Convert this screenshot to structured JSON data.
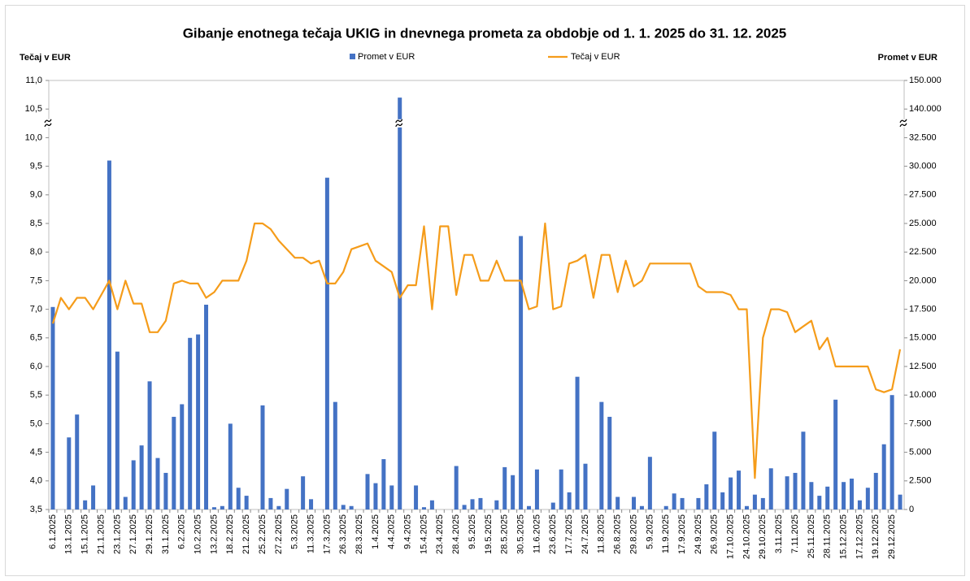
{
  "chart_data": {
    "type": "combo",
    "title": "Gibanje enotnega tečaja UKIG in dnevnega prometa za obdobje od 1. 1. 2025 do 31. 12. 2025",
    "y_label": "Tečaj v EUR",
    "y2_label": "Promet v EUR",
    "categories": [
      "6.1.2025",
      null,
      "13.1.2025",
      null,
      "15.1.2025",
      null,
      "21.1.2025",
      null,
      "23.1.2025",
      null,
      "27.1.2025",
      null,
      "29.1.2025",
      null,
      "31.1.2025",
      null,
      "6.2.2025",
      null,
      "10.2.2025",
      null,
      "13.2.2025",
      null,
      "18.2.2025",
      null,
      "21.2.2025",
      null,
      "25.2.2025",
      null,
      "27.2.2025",
      null,
      "5.3.2025",
      null,
      "11.3.2025",
      null,
      "17.3.2025",
      null,
      "26.3.2025",
      null,
      "28.3.2025",
      null,
      "1.4.2025",
      null,
      "4.4.2025",
      null,
      "9.4.2025",
      null,
      "15.4.2025",
      null,
      "23.4.2025",
      null,
      "28.4.2025",
      null,
      "9.5.2025",
      null,
      "19.5.2025",
      null,
      "28.5.2025",
      null,
      "30.5.2025",
      null,
      "11.6.2025",
      null,
      "23.6.2025",
      null,
      "17.7.2025",
      null,
      "24.7.2025",
      null,
      "11.8.2025",
      null,
      "26.8.2025",
      null,
      "29.8.2025",
      null,
      "5.9.2025",
      null,
      "11.9.2025",
      null,
      "17.9.2025",
      null,
      "24.9.2025",
      null,
      "26.9.2025",
      null,
      "17.10.2025",
      null,
      "24.10.2025",
      null,
      "29.10.2025",
      null,
      "3.11.2025",
      null,
      "7.11.2025",
      null,
      "25.11.2025",
      null,
      "28.11.2025",
      null,
      "15.12.2025",
      null,
      "17.12.2025",
      null,
      "19.12.2025",
      null,
      "29.12.2025",
      null
    ],
    "series": [
      {
        "name": "Promet v EUR",
        "type": "bar",
        "axis": "y2",
        "color": "#4472c4",
        "values": [
          17700,
          0,
          6300,
          8300,
          800,
          2100,
          0,
          30500,
          13800,
          1100,
          4300,
          5600,
          11200,
          4500,
          3200,
          8100,
          9200,
          15000,
          15300,
          17900,
          200,
          300,
          7500,
          1900,
          1200,
          0,
          9100,
          1000,
          300,
          1800,
          0,
          2900,
          900,
          0,
          29000,
          9400,
          400,
          300,
          0,
          3100,
          2300,
          4400,
          2100,
          144000,
          0,
          2100,
          200,
          800,
          0,
          0,
          3800,
          400,
          900,
          1000,
          0,
          800,
          3700,
          3000,
          23900,
          300,
          3500,
          0,
          600,
          3500,
          1500,
          11600,
          4000,
          0,
          9400,
          8100,
          1100,
          0,
          1100,
          300,
          4600,
          0,
          300,
          1400,
          1000,
          0,
          1000,
          2200,
          6800,
          1500,
          2800,
          3400,
          300,
          1300,
          1000,
          3600,
          0,
          2900,
          3200,
          6800,
          2400,
          1200,
          2000,
          9600,
          2400,
          2700,
          800,
          1900,
          3200,
          5700,
          10000,
          1300
        ]
      },
      {
        "name": "Tečaj v EUR",
        "type": "line",
        "axis": "y",
        "color": "#f59c1a",
        "values": [
          6.75,
          7.2,
          7.0,
          7.2,
          7.2,
          7.0,
          7.25,
          7.5,
          7.0,
          7.5,
          7.1,
          7.1,
          6.6,
          6.6,
          6.8,
          7.45,
          7.5,
          7.45,
          7.45,
          7.2,
          7.3,
          7.5,
          7.5,
          7.5,
          7.85,
          8.5,
          8.5,
          8.4,
          8.2,
          8.05,
          7.9,
          7.9,
          7.8,
          7.85,
          7.45,
          7.45,
          7.65,
          8.05,
          8.1,
          8.15,
          7.85,
          7.75,
          7.65,
          7.2,
          7.42,
          7.42,
          8.45,
          7.0,
          8.45,
          8.45,
          7.25,
          7.95,
          7.95,
          7.5,
          7.5,
          7.85,
          7.5,
          7.5,
          7.5,
          7.0,
          7.05,
          8.5,
          7.0,
          7.05,
          7.8,
          7.85,
          7.95,
          7.2,
          7.95,
          7.95,
          7.3,
          7.85,
          7.4,
          7.5,
          7.8,
          7.8,
          7.8,
          7.8,
          7.8,
          7.8,
          7.4,
          7.3,
          7.3,
          7.3,
          7.25,
          7.0,
          7.0,
          4.05,
          6.5,
          7.0,
          7.0,
          6.95,
          6.6,
          6.7,
          6.8,
          6.3,
          6.5,
          6.0,
          6.0,
          6.0,
          6.0,
          6.0,
          5.6,
          5.55,
          5.6,
          6.3
        ]
      }
    ],
    "ylim": [
      3.5,
      11.0
    ],
    "yticks": [
      {
        "value": 3.5,
        "label": "3,5"
      },
      {
        "value": 4.0,
        "label": "4,0"
      },
      {
        "value": 4.5,
        "label": "4,5"
      },
      {
        "value": 5.0,
        "label": "5,0"
      },
      {
        "value": 5.5,
        "label": "5,5"
      },
      {
        "value": 6.0,
        "label": "6,0"
      },
      {
        "value": 6.5,
        "label": "6,5"
      },
      {
        "value": 7.0,
        "label": "7,0"
      },
      {
        "value": 7.5,
        "label": "7,5"
      },
      {
        "value": 8.0,
        "label": "8,0"
      },
      {
        "value": 8.5,
        "label": "8,5"
      },
      {
        "value": 9.0,
        "label": "9,0"
      },
      {
        "value": 9.5,
        "label": "9,5"
      },
      {
        "value": 10.0,
        "label": "10,0"
      },
      {
        "value": 10.5,
        "label": "10,5"
      },
      {
        "value": 11.0,
        "label": "11,0"
      }
    ],
    "y2lim": [
      0,
      150000
    ],
    "y2break": [
      32500,
      130000
    ],
    "y2ticks": [
      0,
      {
        "value": 2500,
        "label": "2.500"
      },
      {
        "value": 5000,
        "label": "5.000"
      },
      {
        "value": 7500,
        "label": "7.500"
      },
      {
        "value": 10000,
        "label": "10.000"
      },
      {
        "value": 12500,
        "label": "12.500"
      },
      {
        "value": 15000,
        "label": "15.000"
      },
      {
        "value": 17500,
        "label": "17.500"
      },
      {
        "value": 20000,
        "label": "20.000"
      },
      {
        "value": 22500,
        "label": "22.500"
      },
      {
        "value": 25000,
        "label": "25.000"
      },
      {
        "value": 27500,
        "label": "27.500"
      },
      {
        "value": 30000,
        "label": "30.000"
      },
      {
        "value": 32500,
        "label": "32.500"
      },
      {
        "value": 140000,
        "label": "140.000"
      },
      {
        "value": 150000,
        "label": "150.000"
      }
    ],
    "legend": "top"
  }
}
